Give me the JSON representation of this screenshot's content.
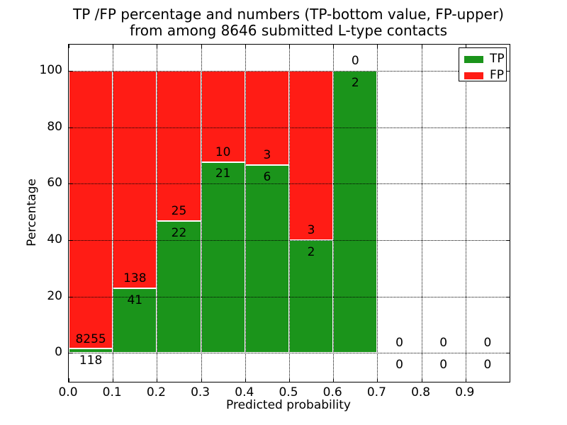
{
  "figure": {
    "title_line1": "TP /FP percentage and numbers (TP-bottom value, FP-upper)",
    "title_line2": "from among 8646 submitted L-type contacts"
  },
  "chart_data": {
    "type": "bar",
    "stacked": true,
    "title": "TP /FP percentage and numbers (TP-bottom value, FP-upper)\nfrom among 8646 submitted L-type contacts",
    "xlabel": "Predicted probability",
    "ylabel": "Percentage",
    "total_submitted": 8646,
    "bin_starts": [
      0.0,
      0.1,
      0.2,
      0.3,
      0.4,
      0.5,
      0.6,
      0.7,
      0.8,
      0.9
    ],
    "bin_width": 0.1,
    "series": [
      {
        "name": "TP",
        "color": "#1b941b",
        "values": [
          118,
          41,
          22,
          21,
          6,
          2,
          2,
          0,
          0,
          0
        ]
      },
      {
        "name": "FP",
        "color": "#ff1c15",
        "values": [
          8255,
          138,
          25,
          10,
          3,
          3,
          0,
          0,
          0,
          0
        ]
      }
    ],
    "tp_percent_by_bin": [
      1.41,
      22.91,
      46.81,
      67.74,
      66.67,
      40.0,
      100.0,
      null,
      null,
      null
    ],
    "bar_edge_color": "#ffffff",
    "xlim": [
      0.0,
      1.0
    ],
    "ylim": [
      -10.3,
      109.4
    ],
    "xtick_values": [
      0.0,
      0.1,
      0.2,
      0.3,
      0.4,
      0.5,
      0.6,
      0.7,
      0.8,
      0.9
    ],
    "xtick_labels": [
      "0.0",
      "0.1",
      "0.2",
      "0.3",
      "0.4",
      "0.5",
      "0.6",
      "0.7",
      "0.8",
      "0.9"
    ],
    "ytick_values": [
      0,
      20,
      40,
      60,
      80,
      100
    ],
    "ytick_labels": [
      "0",
      "20",
      "40",
      "60",
      "80",
      "100"
    ],
    "grid": {
      "visible": true,
      "linestyle": "dotted",
      "color": "#000000",
      "above_bars": true
    },
    "legend": {
      "position": "upper-right",
      "entries": [
        {
          "label": "TP",
          "color": "#1b941b"
        },
        {
          "label": "FP",
          "color": "#ff1c15"
        }
      ]
    }
  }
}
